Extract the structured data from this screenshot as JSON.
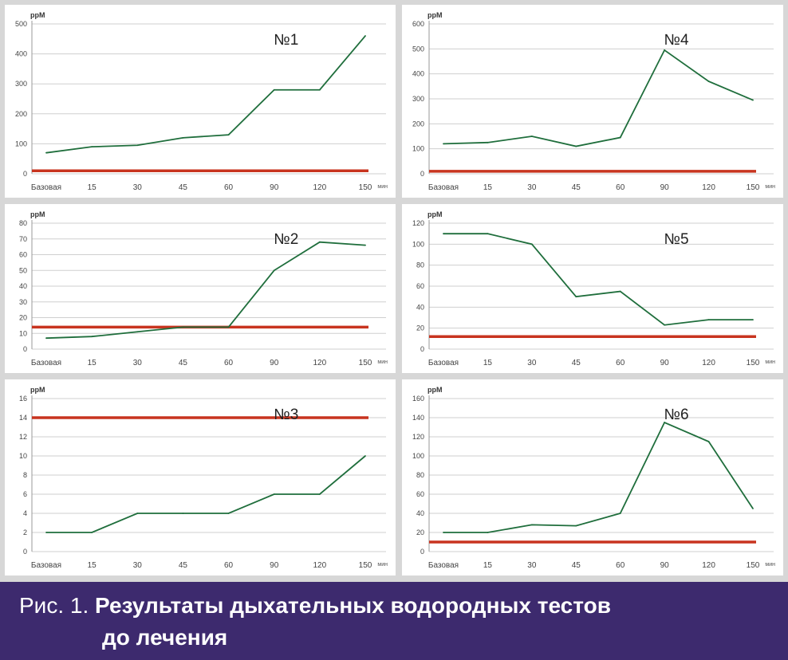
{
  "caption": {
    "prefix": "Рис. 1.",
    "line1": "Результаты дыхательных водородных тестов",
    "line2": "до лечения"
  },
  "colors": {
    "series": "#1f6e3c",
    "threshold": "#c8341f",
    "caption_bg": "#3d2a6e"
  },
  "chart_data": [
    {
      "id": "p1",
      "type": "line",
      "title": "№1",
      "ylabel": "ppM",
      "xlabel": "мин",
      "categories": [
        "Базовая",
        "15",
        "30",
        "45",
        "60",
        "90",
        "120",
        "150"
      ],
      "yticks": [
        "0",
        "100",
        "200",
        "300",
        "400",
        "500"
      ],
      "ylim": [
        0,
        500
      ],
      "values": [
        70,
        90,
        95,
        120,
        130,
        280,
        280,
        460
      ],
      "threshold": 10,
      "grid": true
    },
    {
      "id": "p4",
      "type": "line",
      "title": "№4",
      "ylabel": "ppM",
      "xlabel": "мин",
      "categories": [
        "Базовая",
        "15",
        "30",
        "45",
        "60",
        "90",
        "120",
        "150"
      ],
      "yticks": [
        "0",
        "100",
        "200",
        "300",
        "400",
        "500",
        "600"
      ],
      "ylim": [
        0,
        600
      ],
      "values": [
        120,
        125,
        150,
        110,
        145,
        495,
        370,
        295
      ],
      "threshold": 10,
      "grid": true
    },
    {
      "id": "p2",
      "type": "line",
      "title": "№2",
      "ylabel": "ppM",
      "xlabel": "мин",
      "categories": [
        "Базовая",
        "15",
        "30",
        "45",
        "60",
        "90",
        "120",
        "150"
      ],
      "yticks": [
        "0",
        "10",
        "20",
        "30",
        "40",
        "50",
        "60",
        "70",
        "80"
      ],
      "ylim": [
        0,
        80
      ],
      "values": [
        7,
        8,
        11,
        14,
        14,
        50,
        68,
        66
      ],
      "threshold": 14,
      "grid": true
    },
    {
      "id": "p5",
      "type": "line",
      "title": "№5",
      "ylabel": "ppM",
      "xlabel": "мин",
      "categories": [
        "Базовая",
        "15",
        "30",
        "45",
        "60",
        "90",
        "120",
        "150"
      ],
      "yticks": [
        "0",
        "20",
        "40",
        "60",
        "80",
        "100",
        "120"
      ],
      "ylim": [
        0,
        120
      ],
      "values": [
        110,
        110,
        100,
        50,
        55,
        23,
        28,
        28
      ],
      "threshold": 12,
      "grid": true
    },
    {
      "id": "p3",
      "type": "line",
      "title": "№3",
      "ylabel": "ppM",
      "xlabel": "мин",
      "categories": [
        "Базовая",
        "15",
        "30",
        "45",
        "60",
        "90",
        "120",
        "150"
      ],
      "yticks": [
        "0",
        "2",
        "4",
        "6",
        "8",
        "10",
        "12",
        "14",
        "16"
      ],
      "ylim": [
        0,
        16
      ],
      "values": [
        2,
        2,
        4,
        4,
        4,
        6,
        6,
        10
      ],
      "threshold": 14,
      "grid": true
    },
    {
      "id": "p6",
      "type": "line",
      "title": "№6",
      "ylabel": "ppM",
      "xlabel": "мин",
      "categories": [
        "Базовая",
        "15",
        "30",
        "45",
        "60",
        "90",
        "120",
        "150"
      ],
      "yticks": [
        "0",
        "20",
        "40",
        "60",
        "80",
        "100",
        "120",
        "140",
        "160"
      ],
      "ylim": [
        0,
        160
      ],
      "values": [
        20,
        20,
        28,
        27,
        40,
        135,
        115,
        45
      ],
      "threshold": 10,
      "grid": true
    }
  ]
}
